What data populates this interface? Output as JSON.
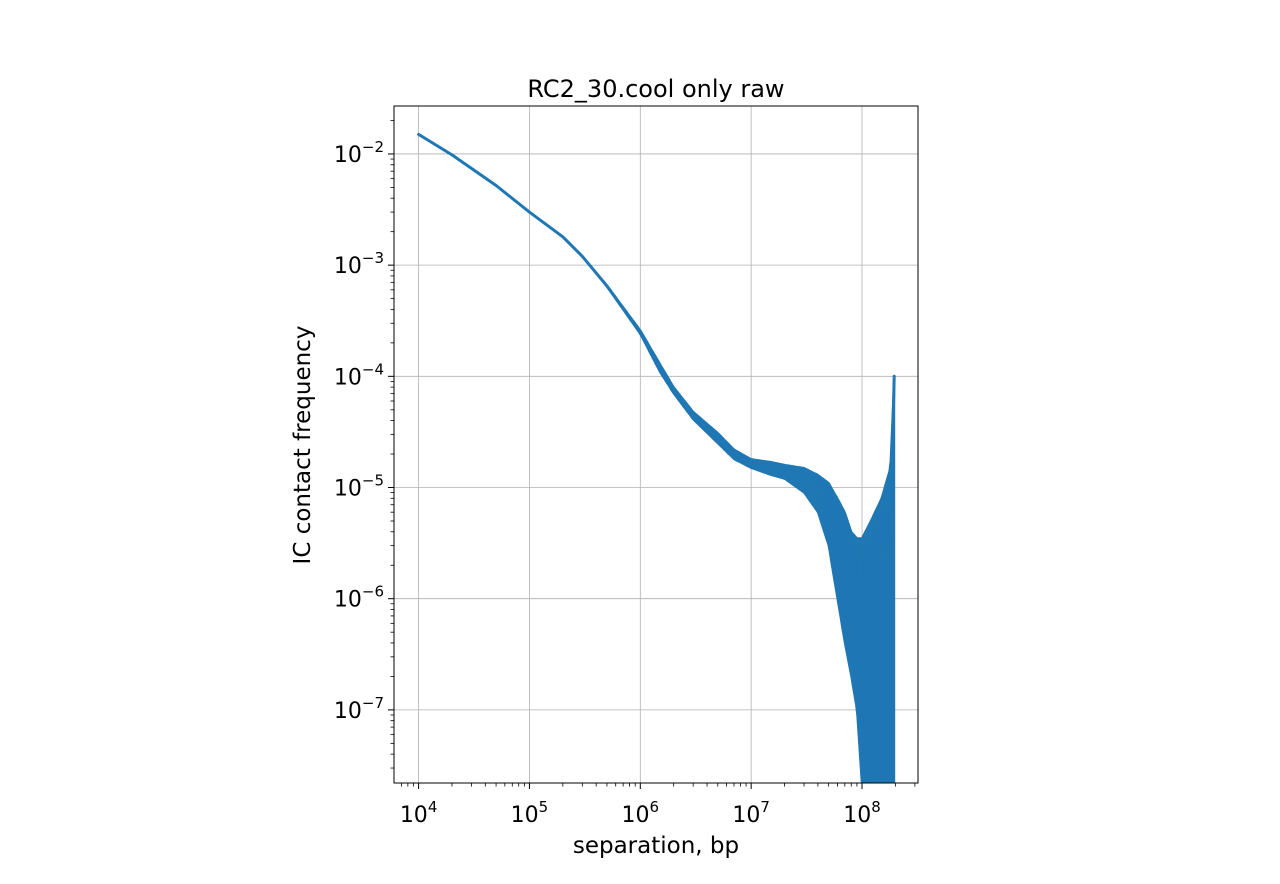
{
  "chart_data": {
    "type": "line",
    "title": "RC2_30.cool only raw",
    "xlabel": "separation, bp",
    "ylabel": "IC contact frequency",
    "x_scale": "log",
    "y_scale": "log",
    "xlim": [
      6000,
      320000000
    ],
    "ylim": [
      2.2e-08,
      0.027
    ],
    "grid": true,
    "legend": "none",
    "x_ticks": [
      {
        "value": 10000,
        "base": "10",
        "exp": "4"
      },
      {
        "value": 100000,
        "base": "10",
        "exp": "5"
      },
      {
        "value": 1000000,
        "base": "10",
        "exp": "6"
      },
      {
        "value": 10000000,
        "base": "10",
        "exp": "7"
      },
      {
        "value": 100000000,
        "base": "10",
        "exp": "8"
      }
    ],
    "y_ticks": [
      {
        "value": 1e-07,
        "base": "10",
        "exp": "−7"
      },
      {
        "value": 1e-06,
        "base": "10",
        "exp": "−6"
      },
      {
        "value": 1e-05,
        "base": "10",
        "exp": "−5"
      },
      {
        "value": 0.0001,
        "base": "10",
        "exp": "−4"
      },
      {
        "value": 0.001,
        "base": "10",
        "exp": "−3"
      },
      {
        "value": 0.01,
        "base": "10",
        "exp": "−2"
      }
    ],
    "series": [
      {
        "color": "#1f77b4",
        "x": [
          10000,
          20000,
          50000,
          100000,
          200000,
          300000,
          500000,
          1000000,
          1500000,
          2000000,
          3000000,
          5000000,
          7000000,
          10000000,
          15000000,
          20000000,
          30000000,
          40000000,
          50000000,
          60000000,
          70000000,
          80000000,
          90000000,
          100000000,
          120000000,
          150000000,
          180000000,
          195000000
        ],
        "y": [
          0.015,
          0.0098,
          0.0052,
          0.003,
          0.0018,
          0.0012,
          0.00065,
          0.00025,
          0.00012,
          7.5e-05,
          4.5e-05,
          2.8e-05,
          2e-05,
          1.6e-05,
          1.5e-05,
          1.4e-05,
          1.2e-05,
          9e-06,
          6.5e-06,
          5e-06,
          4e-06,
          3.2e-06,
          2.8e-06,
          2.5e-06,
          2.4e-06,
          2.2e-06,
          3e-06,
          0.0001
        ],
        "y_low": [
          0.015,
          0.0098,
          0.0052,
          0.003,
          0.0018,
          0.0012,
          0.00064,
          0.00024,
          0.00011,
          7e-05,
          4.1e-05,
          2.5e-05,
          1.8e-05,
          1.5e-05,
          1.3e-05,
          1.2e-05,
          9e-06,
          6e-06,
          3e-06,
          1e-06,
          4e-07,
          2e-07,
          1e-07,
          2e-08,
          2e-08,
          2e-08,
          2e-08,
          2e-08
        ],
        "y_high": [
          0.015,
          0.0098,
          0.0052,
          0.003,
          0.0018,
          0.0012,
          0.00066,
          0.00026,
          0.00013,
          8e-05,
          4.8e-05,
          3.1e-05,
          2.2e-05,
          1.8e-05,
          1.7e-05,
          1.6e-05,
          1.5e-05,
          1.3e-05,
          1.1e-05,
          8e-06,
          6e-06,
          4e-06,
          3.5e-06,
          3.5e-06,
          5e-06,
          8e-06,
          1.5e-05,
          0.0001
        ]
      }
    ]
  }
}
